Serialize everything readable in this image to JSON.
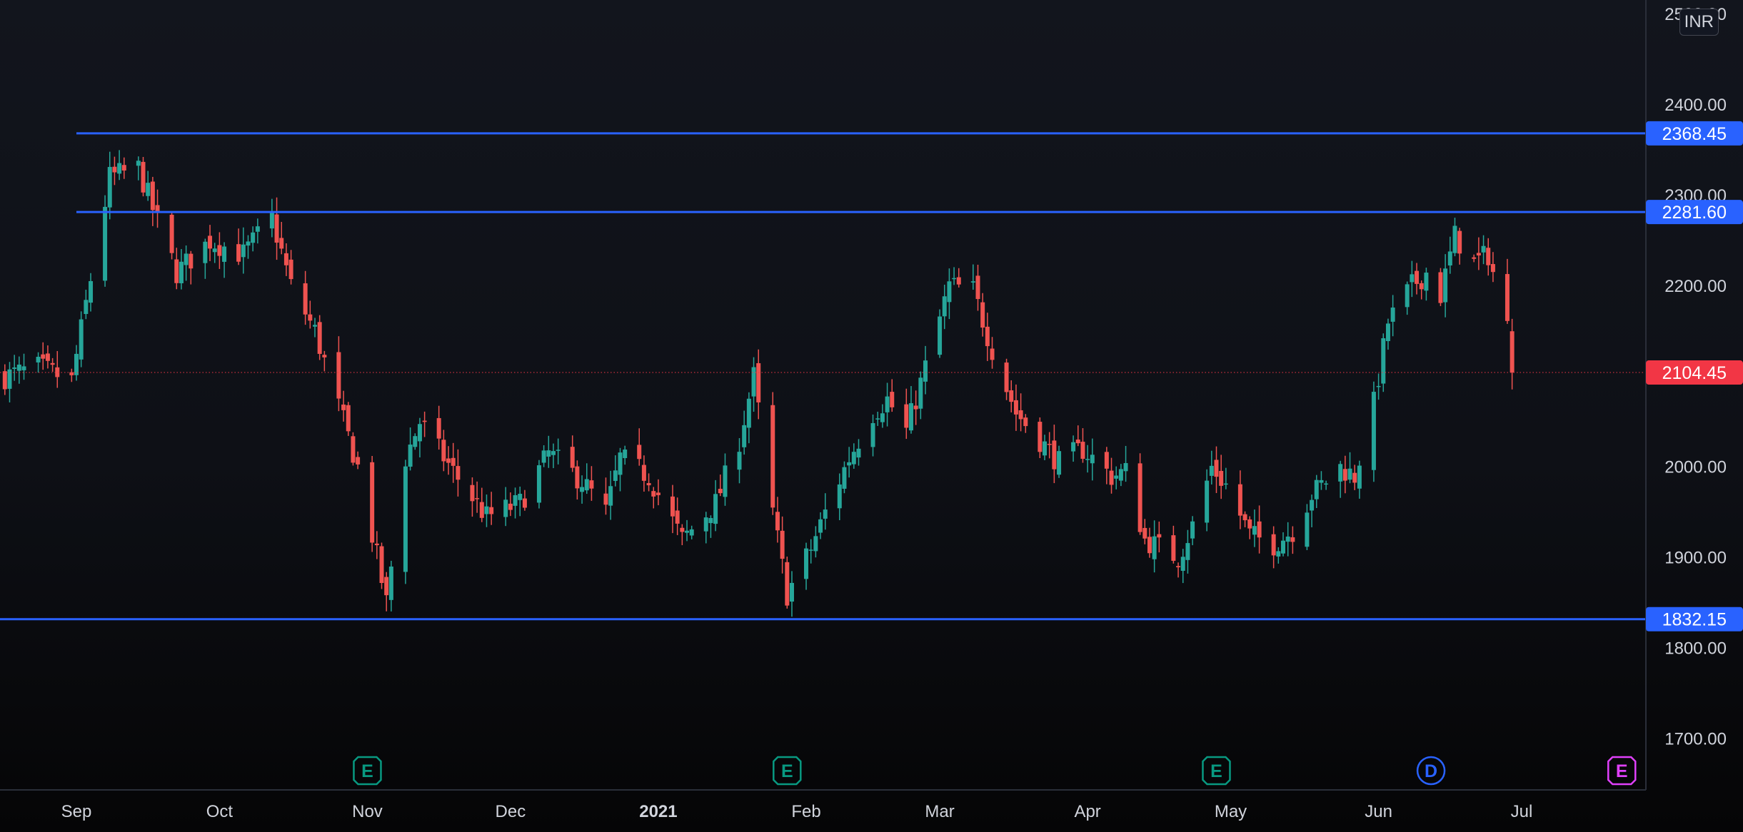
{
  "chart_data": {
    "type": "candlestick",
    "currency": "INR",
    "ylim": [
      1660,
      2520
    ],
    "y_ticks": [
      "1700.00",
      "1800.00",
      "1900.00",
      "2000.00",
      "2100.00",
      "2200.00",
      "2300.00",
      "2400.00",
      "2500.00"
    ],
    "x_ticks": [
      {
        "label": "Sep",
        "date": "2020-09-01",
        "bold": false
      },
      {
        "label": "Oct",
        "date": "2020-10-01",
        "bold": false
      },
      {
        "label": "Nov",
        "date": "2020-11-01",
        "bold": false
      },
      {
        "label": "Dec",
        "date": "2020-12-01",
        "bold": false
      },
      {
        "label": "2021",
        "date": "2021-01-01",
        "bold": true
      },
      {
        "label": "Feb",
        "date": "2021-02-01",
        "bold": false
      },
      {
        "label": "Mar",
        "date": "2021-03-01",
        "bold": false
      },
      {
        "label": "Apr",
        "date": "2021-04-01",
        "bold": false
      },
      {
        "label": "May",
        "date": "2021-05-01",
        "bold": false
      },
      {
        "label": "Jun",
        "date": "2021-06-01",
        "bold": false
      },
      {
        "label": "Jul",
        "date": "2021-07-01",
        "bold": false
      }
    ],
    "horizontal_lines": [
      {
        "value": 2368.45,
        "label": "2368.45",
        "color": "#2962ff",
        "start_date": "2020-09-01"
      },
      {
        "value": 2281.6,
        "label": "2281.60",
        "color": "#2962ff",
        "start_date": "2020-09-01"
      },
      {
        "value": 1832.15,
        "label": "1832.15",
        "color": "#2962ff",
        "start_date": null
      }
    ],
    "last_price": {
      "value": 2104.45,
      "label": "2104.45",
      "color": "#f23645"
    },
    "events": [
      {
        "letter": "E",
        "date": "2020-11-01",
        "color": "#089981",
        "kind": "earnings"
      },
      {
        "letter": "E",
        "date": "2021-01-28",
        "color": "#089981",
        "kind": "earnings"
      },
      {
        "letter": "E",
        "date": "2021-04-28",
        "color": "#089981",
        "kind": "earnings"
      },
      {
        "letter": "D",
        "date": "2021-06-12",
        "color": "#2962ff",
        "kind": "dividend"
      },
      {
        "letter": "E",
        "date": "2021-07-22",
        "color": "#e040fb",
        "kind": "earnings"
      }
    ],
    "colors": {
      "up": "#26a69a",
      "down": "#ef5350",
      "axis_text": "#d1d4dc",
      "level_line": "#2962ff"
    },
    "anchors": [
      [
        "2020-08-17",
        2100
      ],
      [
        "2020-08-24",
        2110
      ],
      [
        "2020-08-31",
        2095
      ],
      [
        "2020-09-03",
        2180
      ],
      [
        "2020-09-08",
        2320
      ],
      [
        "2020-09-14",
        2330
      ],
      [
        "2020-09-17",
        2285
      ],
      [
        "2020-09-22",
        2215
      ],
      [
        "2020-09-29",
        2250
      ],
      [
        "2020-10-06",
        2235
      ],
      [
        "2020-10-12",
        2275
      ],
      [
        "2020-10-16",
        2200
      ],
      [
        "2020-10-21",
        2150
      ],
      [
        "2020-10-27",
        2050
      ],
      [
        "2020-10-30",
        2000
      ],
      [
        "2020-11-05",
        1850
      ],
      [
        "2020-11-09",
        2010
      ],
      [
        "2020-11-12",
        2050
      ],
      [
        "2020-11-19",
        1995
      ],
      [
        "2020-11-26",
        1945
      ],
      [
        "2020-12-03",
        1960
      ],
      [
        "2020-12-09",
        2015
      ],
      [
        "2020-12-16",
        1985
      ],
      [
        "2020-12-21",
        1950
      ],
      [
        "2020-12-24",
        2010
      ],
      [
        "2020-12-30",
        1990
      ],
      [
        "2021-01-06",
        1920
      ],
      [
        "2021-01-13",
        1960
      ],
      [
        "2021-01-18",
        2030
      ],
      [
        "2021-01-21",
        2100
      ],
      [
        "2021-01-25",
        1950
      ],
      [
        "2021-01-28",
        1860
      ],
      [
        "2021-02-02",
        1910
      ],
      [
        "2021-02-05",
        1950
      ],
      [
        "2021-02-10",
        2010
      ],
      [
        "2021-02-15",
        2060
      ],
      [
        "2021-02-18",
        2075
      ],
      [
        "2021-02-22",
        2040
      ],
      [
        "2021-02-26",
        2110
      ],
      [
        "2021-03-03",
        2200
      ],
      [
        "2021-03-08",
        2195
      ],
      [
        "2021-03-12",
        2130
      ],
      [
        "2021-03-17",
        2060
      ],
      [
        "2021-03-22",
        2030
      ],
      [
        "2021-03-26",
        2005
      ],
      [
        "2021-03-31",
        2020
      ],
      [
        "2021-04-06",
        1990
      ],
      [
        "2021-04-09",
        1995
      ],
      [
        "2021-04-13",
        1920
      ],
      [
        "2021-04-20",
        1900
      ],
      [
        "2021-04-23",
        1935
      ],
      [
        "2021-04-27",
        2000
      ],
      [
        "2021-04-30",
        1980
      ],
      [
        "2021-05-05",
        1925
      ],
      [
        "2021-05-10",
        1915
      ],
      [
        "2021-05-14",
        1930
      ],
      [
        "2021-05-18",
        1970
      ],
      [
        "2021-05-24",
        2000
      ],
      [
        "2021-05-27",
        1990
      ],
      [
        "2021-05-31",
        2070
      ],
      [
        "2021-06-03",
        2160
      ],
      [
        "2021-06-08",
        2200
      ],
      [
        "2021-06-11",
        2215
      ],
      [
        "2021-06-14",
        2190
      ],
      [
        "2021-06-17",
        2255
      ],
      [
        "2021-06-21",
        2225
      ],
      [
        "2021-06-24",
        2235
      ],
      [
        "2021-06-28",
        2155
      ],
      [
        "2021-06-29",
        2104.45
      ]
    ]
  }
}
